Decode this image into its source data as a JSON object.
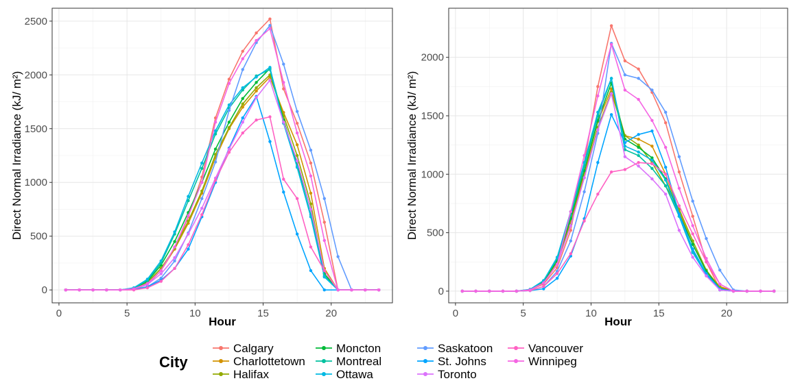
{
  "legend": {
    "title": "City",
    "entries": [
      {
        "name": "Calgary",
        "color": "#F8766D"
      },
      {
        "name": "Charlottetown",
        "color": "#D39200"
      },
      {
        "name": "Halifax",
        "color": "#93AA00"
      },
      {
        "name": "Moncton",
        "color": "#00BA38"
      },
      {
        "name": "Montreal",
        "color": "#00C19F"
      },
      {
        "name": "Ottawa",
        "color": "#00B9E3"
      },
      {
        "name": "Saskatoon",
        "color": "#619CFF"
      },
      {
        "name": "St. Johns",
        "color": "#00A5FF"
      },
      {
        "name": "Toronto",
        "color": "#DB72FB"
      },
      {
        "name": "Vancouver",
        "color": "#FF61C3"
      },
      {
        "name": "Winnipeg",
        "color": "#F564E3"
      }
    ]
  },
  "chart_data": [
    {
      "type": "line",
      "xlabel": "Hour",
      "ylabel": "Direct Normal Irradiance (kJ/ m²)",
      "xlim": [
        -0.5,
        24.5
      ],
      "ylim": [
        -120,
        2620
      ],
      "xticks": [
        0,
        5,
        10,
        15,
        20
      ],
      "yticks": [
        0,
        500,
        1000,
        1500,
        2000,
        2500
      ],
      "grid": true,
      "x": [
        0.5,
        1.5,
        2.5,
        3.5,
        4.5,
        5.5,
        6.5,
        7.5,
        8.5,
        9.5,
        10.5,
        11.5,
        12.5,
        13.5,
        14.5,
        15.5,
        16.5,
        17.5,
        18.5,
        19.5,
        20.5,
        21.5,
        22.5,
        23.5
      ],
      "series": [
        {
          "name": "Calgary",
          "values": [
            0,
            0,
            0,
            0,
            0,
            5,
            50,
            180,
            380,
            680,
            1050,
            1600,
            1960,
            2220,
            2390,
            2520,
            1870,
            1550,
            1180,
            630,
            0,
            0,
            0,
            0
          ]
        },
        {
          "name": "Charlottetown",
          "values": [
            0,
            0,
            0,
            0,
            0,
            10,
            70,
            200,
            380,
            620,
            900,
            1230,
            1500,
            1700,
            1850,
            1980,
            1650,
            1350,
            900,
            200,
            0,
            0,
            0,
            0
          ]
        },
        {
          "name": "Halifax",
          "values": [
            0,
            0,
            0,
            0,
            0,
            10,
            70,
            200,
            390,
            640,
            920,
            1260,
            1510,
            1730,
            1880,
            2000,
            1620,
            1250,
            800,
            150,
            0,
            0,
            0,
            0
          ]
        },
        {
          "name": "Moncton",
          "values": [
            0,
            0,
            0,
            0,
            0,
            15,
            80,
            230,
            450,
            720,
            1000,
            1310,
            1560,
            1780,
            1930,
            2060,
            1580,
            1180,
            750,
            150,
            0,
            0,
            0,
            0
          ]
        },
        {
          "name": "Montreal",
          "values": [
            0,
            0,
            0,
            0,
            0,
            15,
            90,
            250,
            520,
            830,
            1130,
            1450,
            1690,
            1860,
            1990,
            2050,
            1560,
            1150,
            700,
            130,
            0,
            0,
            0,
            0
          ]
        },
        {
          "name": "Ottawa",
          "values": [
            0,
            0,
            0,
            0,
            0,
            20,
            100,
            270,
            540,
            870,
            1180,
            1480,
            1720,
            1880,
            1980,
            2070,
            1550,
            1140,
            680,
            120,
            0,
            0,
            0,
            0
          ]
        },
        {
          "name": "Saskatoon",
          "values": [
            0,
            0,
            0,
            0,
            0,
            5,
            30,
            110,
            270,
            530,
            850,
            1190,
            1670,
            2050,
            2300,
            2460,
            2100,
            1660,
            1300,
            850,
            310,
            0,
            0,
            0
          ]
        },
        {
          "name": "St. Johns",
          "values": [
            0,
            0,
            0,
            0,
            0,
            5,
            30,
            90,
            200,
            380,
            680,
            1000,
            1320,
            1600,
            1800,
            1380,
            910,
            520,
            180,
            0,
            0,
            0,
            0,
            0
          ]
        },
        {
          "name": "Toronto",
          "values": [
            0,
            0,
            0,
            0,
            0,
            10,
            50,
            150,
            300,
            520,
            760,
            1040,
            1310,
            1560,
            1790,
            1950,
            1560,
            1200,
            750,
            180,
            0,
            0,
            0,
            0
          ]
        },
        {
          "name": "Vancouver",
          "values": [
            0,
            0,
            0,
            0,
            0,
            0,
            20,
            80,
            200,
            420,
            700,
            1020,
            1280,
            1460,
            1580,
            1610,
            1030,
            850,
            400,
            180,
            0,
            0,
            0,
            0
          ]
        },
        {
          "name": "Winnipeg",
          "values": [
            0,
            0,
            0,
            0,
            0,
            10,
            60,
            180,
            400,
            690,
            1000,
            1560,
            1920,
            2150,
            2320,
            2430,
            1930,
            1460,
            1060,
            460,
            0,
            0,
            0,
            0
          ]
        }
      ]
    },
    {
      "type": "line",
      "xlabel": "Hour",
      "ylabel": "Direct Normal Irradiance (kJ/ m²)",
      "xlim": [
        -0.5,
        24.5
      ],
      "ylim": [
        -100,
        2420
      ],
      "xticks": [
        0,
        5,
        10,
        15,
        20
      ],
      "yticks": [
        0,
        500,
        1000,
        1500,
        2000
      ],
      "grid": true,
      "x": [
        0.5,
        1.5,
        2.5,
        3.5,
        4.5,
        5.5,
        6.5,
        7.5,
        8.5,
        9.5,
        10.5,
        11.5,
        12.5,
        13.5,
        14.5,
        15.5,
        16.5,
        17.5,
        18.5,
        19.5,
        20.5,
        21.5,
        22.5,
        23.5
      ],
      "series": [
        {
          "name": "Calgary",
          "values": [
            0,
            0,
            0,
            0,
            0,
            10,
            60,
            200,
            520,
            1100,
            1750,
            2270,
            1970,
            1900,
            1700,
            1440,
            1020,
            640,
            250,
            20,
            0,
            0,
            0,
            0
          ]
        },
        {
          "name": "Charlottetown",
          "values": [
            0,
            0,
            0,
            0,
            0,
            10,
            80,
            250,
            600,
            1000,
            1450,
            1730,
            1330,
            1300,
            1240,
            1000,
            680,
            400,
            170,
            40,
            0,
            0,
            0,
            0
          ]
        },
        {
          "name": "Halifax",
          "values": [
            0,
            0,
            0,
            0,
            0,
            10,
            70,
            230,
            570,
            970,
            1400,
            1700,
            1330,
            1250,
            1100,
            900,
            700,
            430,
            180,
            30,
            0,
            0,
            0,
            0
          ]
        },
        {
          "name": "Moncton",
          "values": [
            0,
            0,
            0,
            0,
            0,
            10,
            80,
            260,
            620,
            1030,
            1460,
            1780,
            1300,
            1230,
            1140,
            960,
            660,
            400,
            170,
            20,
            0,
            0,
            0,
            0
          ]
        },
        {
          "name": "Montreal",
          "values": [
            0,
            0,
            0,
            0,
            0,
            15,
            90,
            280,
            650,
            1070,
            1500,
            1820,
            1210,
            1160,
            1050,
            900,
            640,
            340,
            150,
            10,
            0,
            0,
            0,
            0
          ]
        },
        {
          "name": "Ottawa",
          "values": [
            0,
            0,
            0,
            0,
            0,
            15,
            90,
            290,
            680,
            1100,
            1530,
            1820,
            1240,
            1190,
            1120,
            950,
            640,
            330,
            140,
            10,
            0,
            0,
            0,
            0
          ]
        },
        {
          "name": "Saskatoon",
          "values": [
            0,
            0,
            0,
            0,
            0,
            5,
            40,
            170,
            430,
            850,
            1350,
            2120,
            1850,
            1820,
            1720,
            1530,
            1150,
            770,
            450,
            180,
            10,
            0,
            0,
            0
          ]
        },
        {
          "name": "St. Johns",
          "values": [
            0,
            0,
            0,
            0,
            0,
            5,
            20,
            110,
            300,
            620,
            1100,
            1510,
            1270,
            1340,
            1370,
            1060,
            660,
            360,
            150,
            20,
            0,
            0,
            0,
            0
          ]
        },
        {
          "name": "Toronto",
          "values": [
            0,
            0,
            0,
            0,
            0,
            10,
            70,
            230,
            560,
            970,
            1380,
            1690,
            1150,
            1070,
            960,
            830,
            520,
            290,
            130,
            10,
            0,
            0,
            0,
            0
          ]
        },
        {
          "name": "Vancouver",
          "values": [
            0,
            0,
            0,
            0,
            0,
            5,
            40,
            150,
            320,
            600,
            830,
            1020,
            1040,
            1100,
            1090,
            1000,
            730,
            490,
            250,
            60,
            0,
            0,
            0,
            0
          ]
        },
        {
          "name": "Winnipeg",
          "values": [
            0,
            0,
            0,
            0,
            0,
            10,
            70,
            230,
            680,
            1160,
            1670,
            2110,
            1720,
            1640,
            1460,
            1230,
            880,
            560,
            280,
            60,
            0,
            0,
            0,
            0
          ]
        }
      ]
    }
  ]
}
